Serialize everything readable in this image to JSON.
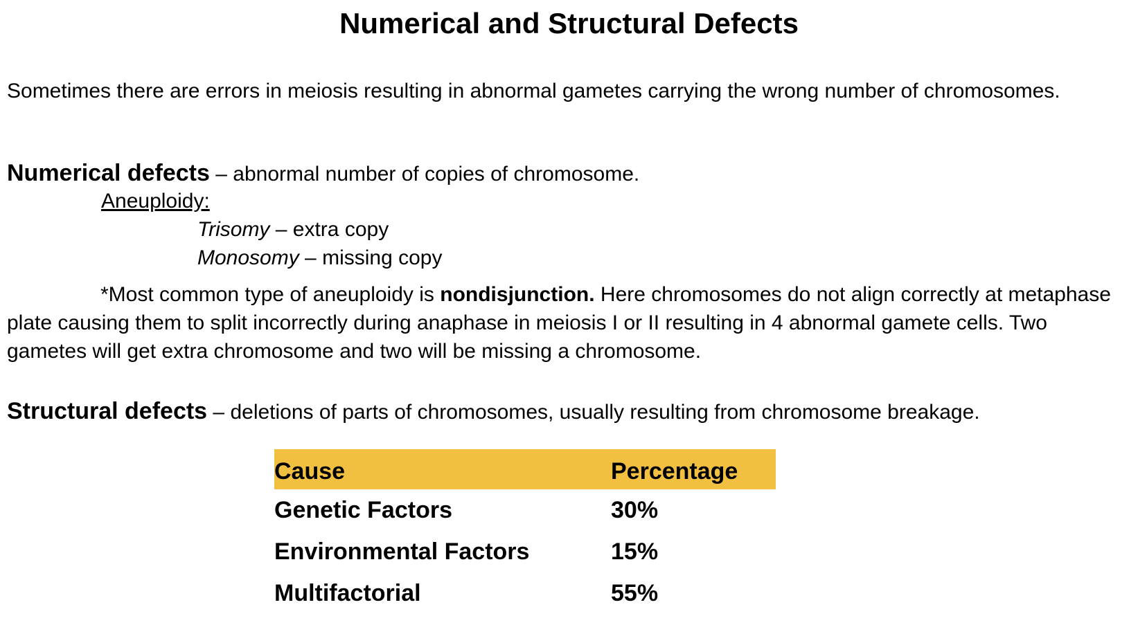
{
  "title": "Numerical and Structural Defects",
  "intro": "Sometimes there are errors in meiosis resulting in abnormal gametes carrying the wrong number of chromosomes.",
  "numerical": {
    "term": "Numerical defects",
    "definition": " – abnormal number of copies of chromosome.",
    "aneuploidy_label": "Aneuploidy:",
    "trisomy_term": "Trisomy",
    "trisomy_def": " – extra copy",
    "monosomy_term": "Monosomy",
    "monosomy_def": " – missing copy",
    "note_prefix": "*Most common type of aneuploidy is ",
    "note_bold": "nondisjunction.",
    "note_rest": " Here chromosomes do not align correctly at metaphase plate causing them to split incorrectly during anaphase in meiosis I or II resulting in 4 abnormal gamete cells. Two gametes will get extra chromosome and two will be missing a chromosome."
  },
  "structural": {
    "term": "Structural defects",
    "definition": " – deletions of parts of chromosomes, usually resulting from chromosome breakage."
  },
  "table": {
    "header_color": "#f2c040",
    "headers": [
      "Cause",
      "Percentage"
    ],
    "rows": [
      [
        "Genetic Factors",
        "30%"
      ],
      [
        "Environmental Factors",
        "15%"
      ],
      [
        "Multifactorial",
        "55%"
      ]
    ]
  }
}
